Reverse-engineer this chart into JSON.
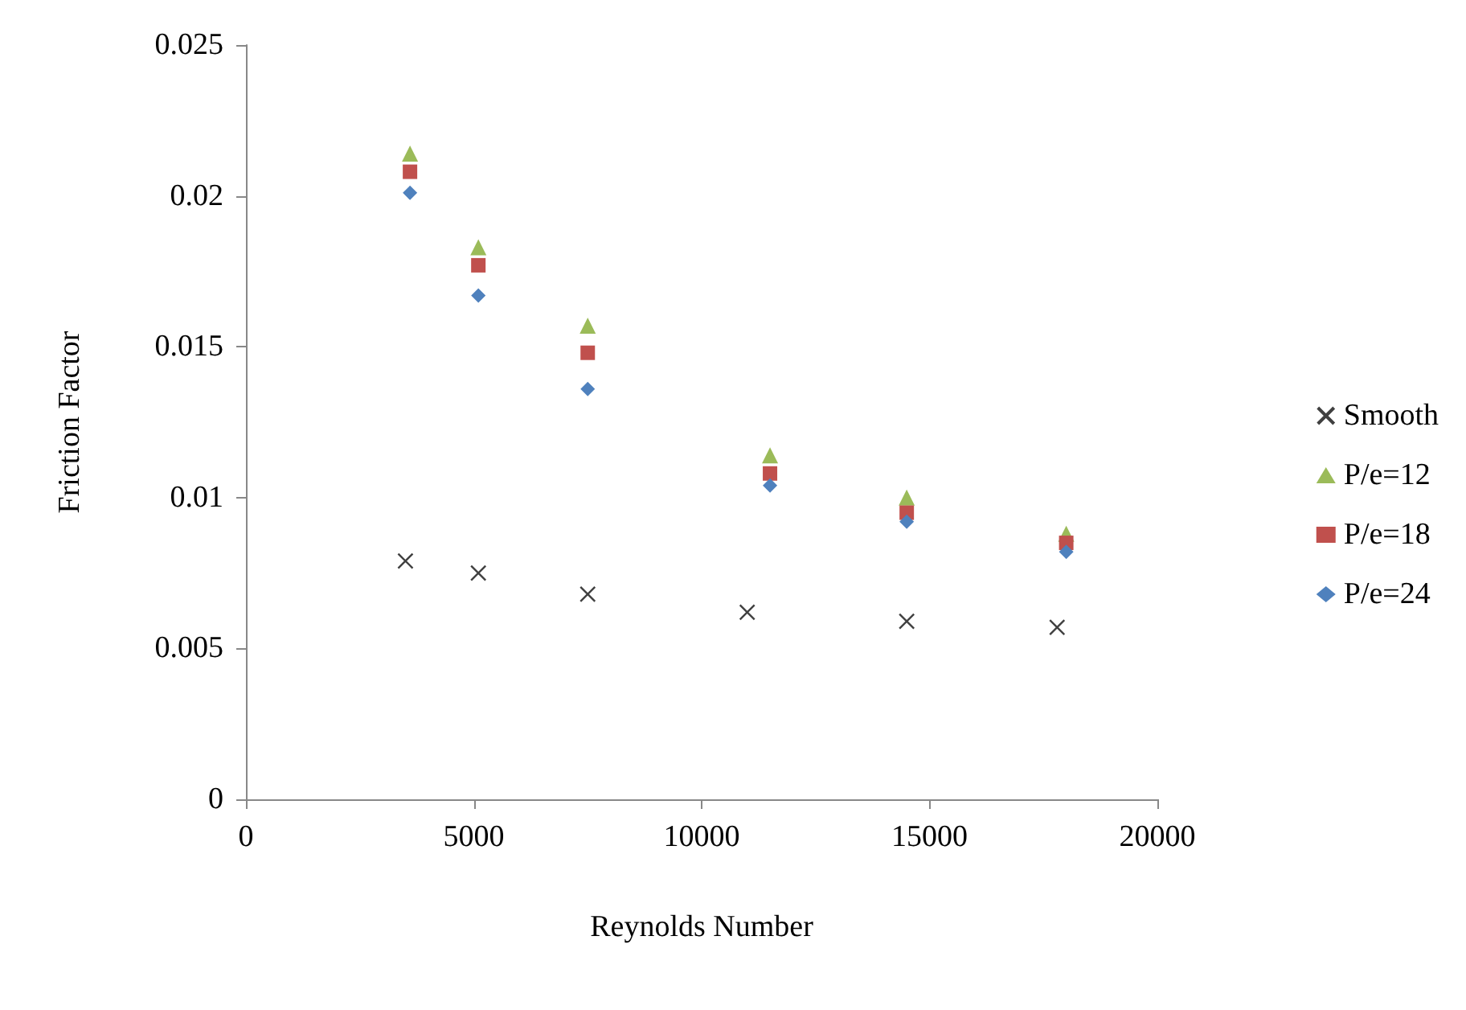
{
  "chart_data": {
    "type": "scatter",
    "xlabel": "Reynolds Number",
    "ylabel": "Friction Factor",
    "xlim": [
      0,
      20000
    ],
    "xticks": [
      0,
      5000,
      10000,
      15000,
      20000
    ],
    "ylim": [
      0,
      0.025
    ],
    "yticks": [
      0,
      0.005,
      0.01,
      0.015,
      0.02,
      0.025
    ],
    "grid": false,
    "legend": "right",
    "series": [
      {
        "name": "Smooth",
        "color": "#404040",
        "marker": "cross",
        "x": [
          3500,
          5100,
          7500,
          11000,
          14500,
          17800
        ],
        "values": [
          0.0079,
          0.0075,
          0.0068,
          0.0062,
          0.0059,
          0.0057
        ]
      },
      {
        "name": "P/e=12",
        "color": "#9bbb59",
        "marker": "triangle",
        "x": [
          3600,
          5100,
          7500,
          11500,
          14500,
          18000
        ],
        "values": [
          0.0214,
          0.0183,
          0.0157,
          0.0114,
          0.01,
          0.0088
        ]
      },
      {
        "name": "P/e=18",
        "color": "#c0504d",
        "marker": "square",
        "x": [
          3600,
          5100,
          7500,
          11500,
          14500,
          18000
        ],
        "values": [
          0.0208,
          0.0177,
          0.0148,
          0.0108,
          0.0095,
          0.0085
        ]
      },
      {
        "name": "P/e=24",
        "color": "#4f81bd",
        "marker": "diamond",
        "x": [
          3600,
          5100,
          7500,
          11500,
          14500,
          18000
        ],
        "values": [
          0.0201,
          0.0167,
          0.0136,
          0.0104,
          0.0092,
          0.0082
        ]
      }
    ]
  }
}
